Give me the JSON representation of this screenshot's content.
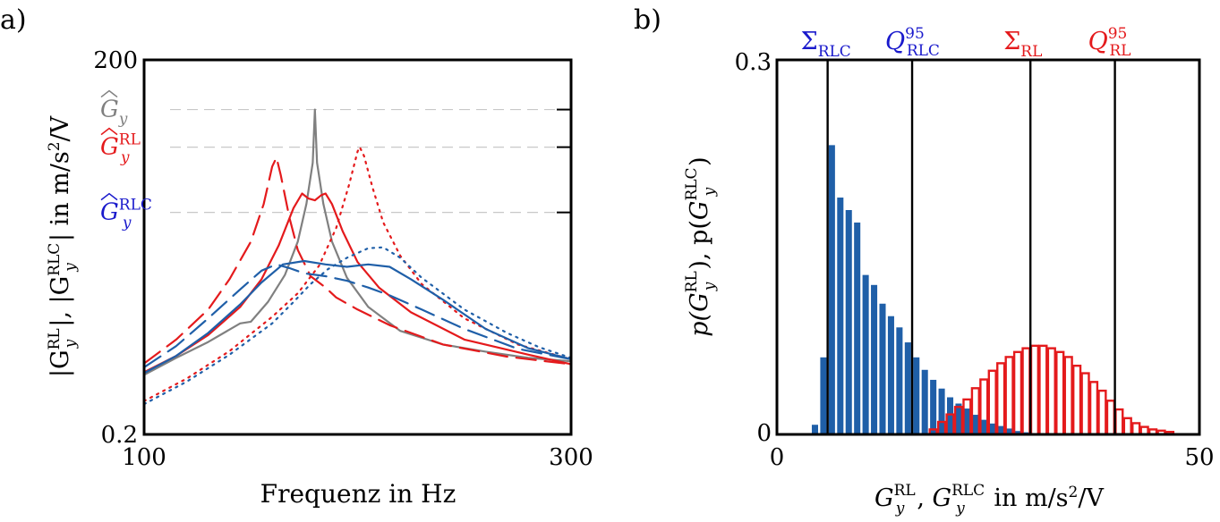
{
  "colors": {
    "gray": "#808080",
    "red": "#e41a1c",
    "blue": "#1f5fa8",
    "label_blue": "#1a1acc",
    "black": "#000000"
  },
  "chart_data": [
    {
      "panel_label": "a)",
      "type": "line",
      "xlabel": "Frequenz in Hz",
      "ylabel": "|G_y^RL|, |G_y^RLC| in m/s²/V",
      "ylabel_parts": {
        "a": "|G",
        "sup1": "RL",
        "sub1": "y",
        "b": "|, |G",
        "sup2": "RLC",
        "sub2": "y",
        "c": "| in m/s",
        "sup3": "2",
        "d": "/V"
      },
      "x_ticks": [
        "100",
        "300"
      ],
      "y_ticks": [
        "0.2",
        "200"
      ],
      "xlim": [
        100,
        300
      ],
      "ylim": [
        0.2,
        200
      ],
      "yscale": "log",
      "reference_labels": [
        {
          "name": "G_y",
          "base": "G",
          "sub": "y",
          "sup": "",
          "color": "gray",
          "y": 80
        },
        {
          "name": "G_y^RL",
          "base": "G",
          "sub": "y",
          "sup": "RL",
          "color": "red",
          "y": 40
        },
        {
          "name": "G_y^RLC",
          "base": "G",
          "sub": "y",
          "sup": "RLC",
          "color": "blue",
          "y": 12
        }
      ],
      "series": [
        {
          "color": "gray",
          "dash": "solid",
          "points": [
            [
              100,
              0.6
            ],
            [
              115,
              0.82
            ],
            [
              130,
              1.1
            ],
            [
              145,
              1.55
            ],
            [
              150,
              1.6
            ],
            [
              158,
              2.3
            ],
            [
              166,
              3.8
            ],
            [
              172,
              7
            ],
            [
              176,
              14
            ],
            [
              179,
              30
            ],
            [
              180,
              80
            ],
            [
              181,
              30
            ],
            [
              184,
              14
            ],
            [
              188,
              7
            ],
            [
              195,
              3.6
            ],
            [
              205,
              2.1
            ],
            [
              220,
              1.35
            ],
            [
              240,
              1.05
            ],
            [
              260,
              0.92
            ],
            [
              280,
              0.82
            ],
            [
              300,
              0.77
            ]
          ]
        },
        {
          "color": "red",
          "dash": "solid",
          "points": [
            [
              100,
              0.63
            ],
            [
              115,
              0.85
            ],
            [
              130,
              1.25
            ],
            [
              145,
              2.1
            ],
            [
              155,
              3.5
            ],
            [
              163,
              6.5
            ],
            [
              170,
              13
            ],
            [
              174,
              17
            ],
            [
              177,
              15.5
            ],
            [
              180,
              15
            ],
            [
              183,
              16.5
            ],
            [
              185,
              17
            ],
            [
              188,
              14
            ],
            [
              193,
              8.5
            ],
            [
              200,
              4.8
            ],
            [
              210,
              3
            ],
            [
              225,
              1.9
            ],
            [
              250,
              1.15
            ],
            [
              280,
              0.87
            ],
            [
              300,
              0.73
            ]
          ]
        },
        {
          "color": "red",
          "dash": "dash",
          "points": [
            [
              100,
              0.74
            ],
            [
              115,
              1.15
            ],
            [
              130,
              2
            ],
            [
              140,
              3.5
            ],
            [
              150,
              7
            ],
            [
              156,
              14
            ],
            [
              160,
              28
            ],
            [
              162,
              33
            ],
            [
              164,
              24
            ],
            [
              168,
              11
            ],
            [
              172,
              6
            ],
            [
              178,
              3.7
            ],
            [
              185,
              3
            ],
            [
              190,
              2.5
            ],
            [
              200,
              2
            ],
            [
              215,
              1.5
            ],
            [
              240,
              1.05
            ],
            [
              270,
              0.84
            ],
            [
              300,
              0.73
            ]
          ]
        },
        {
          "color": "red",
          "dash": "dot",
          "points": [
            [
              100,
              0.37
            ],
            [
              120,
              0.56
            ],
            [
              140,
              0.93
            ],
            [
              160,
              1.75
            ],
            [
              172,
              2.7
            ],
            [
              182,
              4.5
            ],
            [
              190,
              9
            ],
            [
              196,
              20
            ],
            [
              200,
              37
            ],
            [
              201,
              40
            ],
            [
              203,
              34
            ],
            [
              207,
              19
            ],
            [
              212,
              10
            ],
            [
              220,
              5.4
            ],
            [
              230,
              3.2
            ],
            [
              250,
              1.7
            ],
            [
              275,
              1.05
            ],
            [
              300,
              0.8
            ]
          ]
        },
        {
          "color": "blue",
          "dash": "solid",
          "points": [
            [
              100,
              0.62
            ],
            [
              115,
              0.85
            ],
            [
              130,
              1.3
            ],
            [
              145,
              2.2
            ],
            [
              155,
              3.3
            ],
            [
              165,
              4.6
            ],
            [
              175,
              4.9
            ],
            [
              185,
              4.6
            ],
            [
              195,
              4.4
            ],
            [
              205,
              4.6
            ],
            [
              215,
              4.4
            ],
            [
              225,
              3.5
            ],
            [
              240,
              2.4
            ],
            [
              260,
              1.4
            ],
            [
              280,
              0.98
            ],
            [
              300,
              0.8
            ]
          ]
        },
        {
          "color": "blue",
          "dash": "dash",
          "points": [
            [
              100,
              0.69
            ],
            [
              115,
              1.02
            ],
            [
              130,
              1.7
            ],
            [
              145,
              2.9
            ],
            [
              155,
              4.1
            ],
            [
              162,
              4.6
            ],
            [
              168,
              4.3
            ],
            [
              175,
              3.9
            ],
            [
              185,
              3.7
            ],
            [
              195,
              3.4
            ],
            [
              205,
              3
            ],
            [
              215,
              2.6
            ],
            [
              230,
              2
            ],
            [
              250,
              1.4
            ],
            [
              275,
              0.97
            ],
            [
              300,
              0.8
            ]
          ]
        },
        {
          "color": "blue",
          "dash": "dot",
          "points": [
            [
              100,
              0.35
            ],
            [
              120,
              0.53
            ],
            [
              140,
              0.87
            ],
            [
              160,
              1.55
            ],
            [
              170,
              2.3
            ],
            [
              178,
              3.2
            ],
            [
              186,
              4.2
            ],
            [
              195,
              5.2
            ],
            [
              205,
              6.2
            ],
            [
              212,
              6.3
            ],
            [
              220,
              5.2
            ],
            [
              230,
              3.6
            ],
            [
              250,
              2
            ],
            [
              270,
              1.3
            ],
            [
              285,
              1
            ],
            [
              300,
              0.82
            ]
          ]
        }
      ]
    },
    {
      "panel_label": "b)",
      "type": "bar",
      "xlabel": "G_y^RL, G_y^RLC in m/s²/V",
      "xlabel_parts": {
        "a_base": "G",
        "a_sub": "y",
        "a_sup": "RL",
        "sep": ", ",
        "b_base": "G",
        "b_sub": "y",
        "b_sup": "RLC",
        "c": " in m/s",
        "sup3": "2",
        "d": "/V"
      },
      "ylabel": "p(G_y^RL), p(G_y^RLC)",
      "ylabel_parts": {
        "p1": "p(",
        "g1_base": "G",
        "g1_sub": "y",
        "g1_sup": "RL",
        "mid": "), p(",
        "g2_base": "G",
        "g2_sub": "y",
        "g2_sup": "RLC",
        "end": ")"
      },
      "x_ticks": [
        "0",
        "50"
      ],
      "y_ticks": [
        "0",
        "0.3"
      ],
      "xlim": [
        0,
        50
      ],
      "ylim": [
        0,
        0.3
      ],
      "bin_width": 1,
      "series": [
        {
          "name": "RLC",
          "color": "blue",
          "filled": true,
          "start": 4,
          "values": [
            0.008,
            0.062,
            0.232,
            0.19,
            0.18,
            0.17,
            0.128,
            0.12,
            0.105,
            0.095,
            0.086,
            0.074,
            0.062,
            0.052,
            0.044,
            0.037,
            0.03,
            0.025,
            0.021,
            0.016,
            0.012,
            0.009,
            0.007,
            0.005,
            0.003,
            0.002
          ]
        },
        {
          "name": "RL",
          "color": "red",
          "filled": false,
          "start": 18,
          "values": [
            0.004,
            0.01,
            0.016,
            0.022,
            0.028,
            0.037,
            0.044,
            0.051,
            0.057,
            0.062,
            0.066,
            0.069,
            0.071,
            0.071,
            0.069,
            0.066,
            0.062,
            0.055,
            0.049,
            0.042,
            0.035,
            0.027,
            0.02,
            0.013,
            0.009,
            0.006,
            0.004,
            0.003,
            0.002
          ]
        }
      ],
      "vlines": [
        {
          "label_base": "Σ",
          "label_sub": "RLC",
          "label_sup": "",
          "x": 6,
          "color": "label_blue"
        },
        {
          "label_base": "Q",
          "label_sub": "RLC",
          "label_sup": "95",
          "x": 16,
          "color": "label_blue"
        },
        {
          "label_base": "Σ",
          "label_sub": "RL",
          "label_sup": "",
          "x": 30,
          "color": "red"
        },
        {
          "label_base": "Q",
          "label_sub": "RL",
          "label_sup": "95",
          "x": 40,
          "color": "red"
        }
      ]
    }
  ]
}
